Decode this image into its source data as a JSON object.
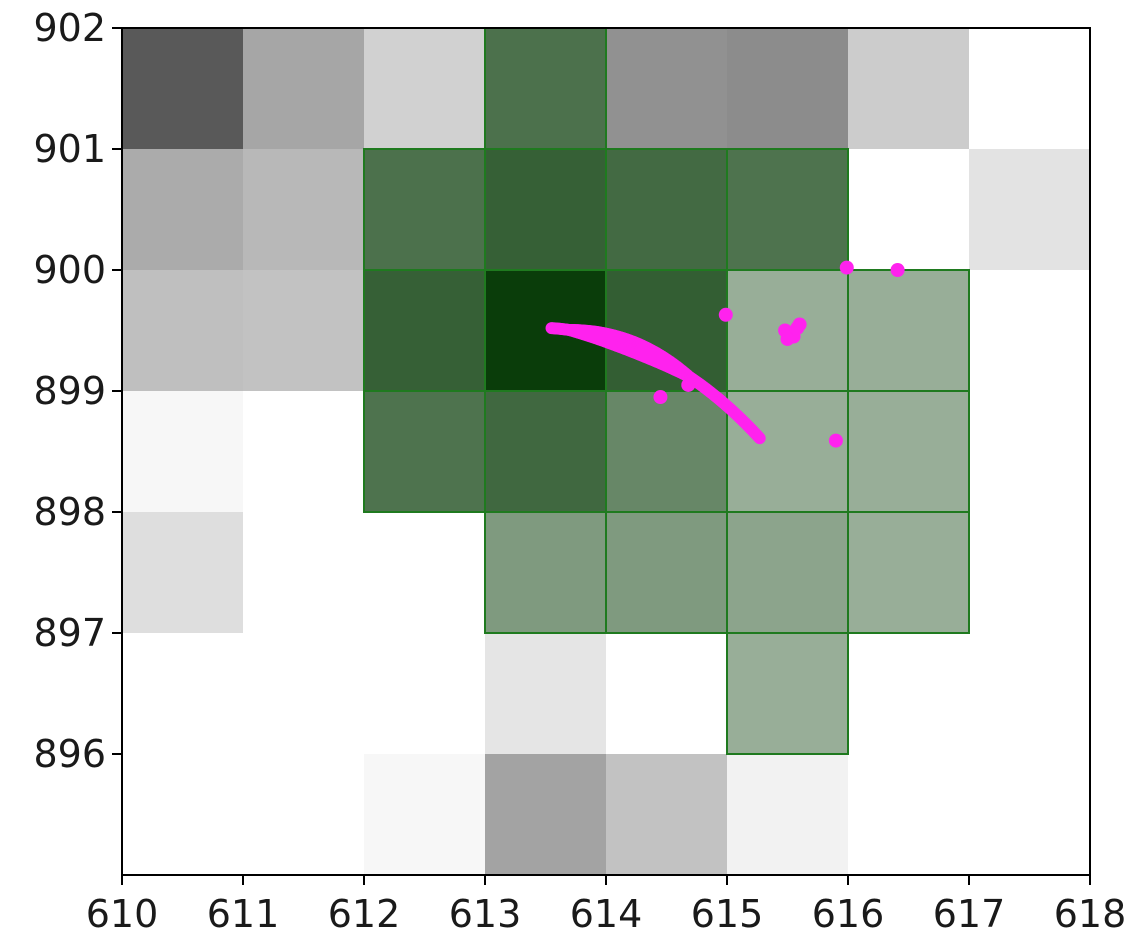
{
  "chart_data": {
    "type": "heatmap",
    "x_ticks": [
      "610",
      "611",
      "612",
      "613",
      "614",
      "615",
      "616",
      "617",
      "618"
    ],
    "y_ticks": [
      "896",
      "897",
      "898",
      "899",
      "900",
      "901",
      "902"
    ],
    "xlim": [
      610,
      618
    ],
    "ylim": [
      895,
      902
    ],
    "grid": false,
    "legend": "none",
    "colors": {
      "gray_base": "#000000",
      "green_base": "#0a3d0a",
      "green_edge": "#1f7a1f",
      "points": "#ff22ee"
    },
    "gray_cells": [
      {
        "x": 610,
        "y": 901,
        "v": 0.65
      },
      {
        "x": 611,
        "y": 901,
        "v": 0.35
      },
      {
        "x": 612,
        "y": 901,
        "v": 0.18
      },
      {
        "x": 614,
        "y": 901,
        "v": 0.43
      },
      {
        "x": 615,
        "y": 901,
        "v": 0.45
      },
      {
        "x": 616,
        "y": 901,
        "v": 0.2
      },
      {
        "x": 610,
        "y": 900,
        "v": 0.33
      },
      {
        "x": 611,
        "y": 900,
        "v": 0.28
      },
      {
        "x": 617,
        "y": 900,
        "v": 0.11
      },
      {
        "x": 610,
        "y": 899,
        "v": 0.25
      },
      {
        "x": 611,
        "y": 899,
        "v": 0.24
      },
      {
        "x": 610,
        "y": 898,
        "v": 0.03
      },
      {
        "x": 610,
        "y": 897,
        "v": 0.13
      },
      {
        "x": 613,
        "y": 896,
        "v": 0.1
      },
      {
        "x": 612,
        "y": 895,
        "v": 0.03
      },
      {
        "x": 613,
        "y": 895,
        "v": 0.36
      },
      {
        "x": 614,
        "y": 895,
        "v": 0.24
      },
      {
        "x": 615,
        "y": 895,
        "v": 0.05
      }
    ],
    "green_cells": [
      {
        "x": 613,
        "y": 901,
        "v": 0.73
      },
      {
        "x": 612,
        "y": 900,
        "v": 0.73
      },
      {
        "x": 613,
        "y": 900,
        "v": 0.82
      },
      {
        "x": 614,
        "y": 900,
        "v": 0.77
      },
      {
        "x": 615,
        "y": 900,
        "v": 0.72
      },
      {
        "x": 612,
        "y": 899,
        "v": 0.82
      },
      {
        "x": 613,
        "y": 899,
        "v": 1.0
      },
      {
        "x": 614,
        "y": 899,
        "v": 0.83
      },
      {
        "x": 615,
        "y": 899,
        "v": 0.42
      },
      {
        "x": 616,
        "y": 899,
        "v": 0.42
      },
      {
        "x": 612,
        "y": 898,
        "v": 0.72
      },
      {
        "x": 613,
        "y": 898,
        "v": 0.78
      },
      {
        "x": 614,
        "y": 898,
        "v": 0.62
      },
      {
        "x": 615,
        "y": 898,
        "v": 0.42
      },
      {
        "x": 616,
        "y": 898,
        "v": 0.42
      },
      {
        "x": 613,
        "y": 897,
        "v": 0.52
      },
      {
        "x": 614,
        "y": 897,
        "v": 0.52
      },
      {
        "x": 615,
        "y": 897,
        "v": 0.47
      },
      {
        "x": 616,
        "y": 897,
        "v": 0.42
      },
      {
        "x": 615,
        "y": 896,
        "v": 0.42
      }
    ],
    "scatter": {
      "points": [
        [
          614.99,
          899.63
        ],
        [
          615.99,
          900.02
        ],
        [
          616.41,
          900.0
        ],
        [
          615.9,
          898.59
        ],
        [
          614.45,
          898.95
        ],
        [
          614.68,
          899.05
        ]
      ],
      "clusters": [
        [
          615.48,
          899.5
        ],
        [
          615.55,
          899.45
        ],
        [
          615.6,
          899.55
        ],
        [
          615.5,
          899.43
        ],
        [
          615.58,
          899.52
        ]
      ],
      "arc": {
        "from": [
          613.55,
          899.52
        ],
        "control": [
          614.5,
          899.45
        ],
        "to": [
          615.27,
          898.61
        ],
        "width": [
          4,
          12
        ]
      }
    }
  }
}
